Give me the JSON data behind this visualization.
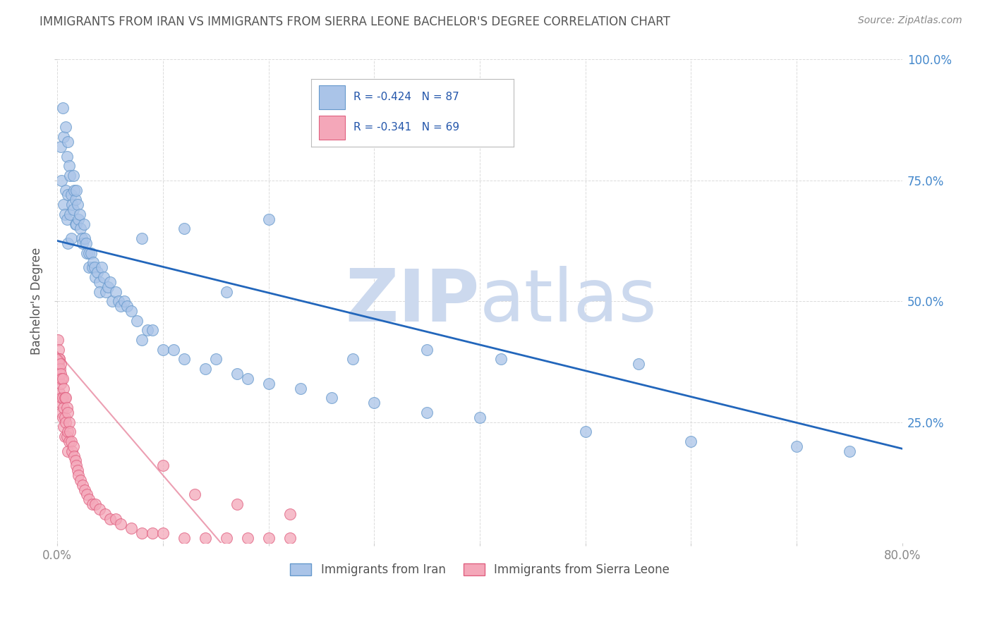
{
  "title": "IMMIGRANTS FROM IRAN VS IMMIGRANTS FROM SIERRA LEONE BACHELOR'S DEGREE CORRELATION CHART",
  "source": "Source: ZipAtlas.com",
  "ylabel": "Bachelor's Degree",
  "xlim": [
    0.0,
    0.8
  ],
  "ylim": [
    0.0,
    1.0
  ],
  "iran_color": "#aac4e8",
  "iran_edge": "#6699cc",
  "sierra_color": "#f4a7b9",
  "sierra_edge": "#e06080",
  "iran_line_color": "#2266bb",
  "sierra_line_color": "#e06080",
  "iran_line_x": [
    0.0,
    0.8
  ],
  "iran_line_y": [
    0.625,
    0.195
  ],
  "sierra_line_x": [
    0.0,
    0.155
  ],
  "sierra_line_y": [
    0.395,
    0.0
  ],
  "iran_R": "-0.424",
  "iran_N": 87,
  "sierra_R": "-0.341",
  "sierra_N": 69,
  "watermark_zip": "ZIP",
  "watermark_atlas": "atlas",
  "watermark_color": "#ccd9ee",
  "legend_iran": "Immigrants from Iran",
  "legend_sierra": "Immigrants from Sierra Leone",
  "iran_scatter_x": [
    0.003,
    0.004,
    0.005,
    0.006,
    0.006,
    0.007,
    0.008,
    0.008,
    0.009,
    0.009,
    0.01,
    0.01,
    0.01,
    0.011,
    0.012,
    0.012,
    0.013,
    0.013,
    0.014,
    0.015,
    0.015,
    0.016,
    0.017,
    0.017,
    0.018,
    0.018,
    0.019,
    0.02,
    0.021,
    0.022,
    0.023,
    0.024,
    0.025,
    0.026,
    0.027,
    0.028,
    0.03,
    0.03,
    0.032,
    0.033,
    0.034,
    0.035,
    0.036,
    0.038,
    0.04,
    0.04,
    0.042,
    0.044,
    0.046,
    0.048,
    0.05,
    0.052,
    0.055,
    0.058,
    0.06,
    0.063,
    0.066,
    0.07,
    0.075,
    0.08,
    0.085,
    0.09,
    0.1,
    0.11,
    0.12,
    0.14,
    0.15,
    0.17,
    0.18,
    0.2,
    0.23,
    0.26,
    0.3,
    0.35,
    0.4,
    0.5,
    0.6,
    0.7,
    0.75,
    0.08,
    0.12,
    0.16,
    0.2,
    0.28,
    0.35,
    0.42,
    0.55
  ],
  "iran_scatter_y": [
    0.82,
    0.75,
    0.9,
    0.7,
    0.84,
    0.68,
    0.86,
    0.73,
    0.8,
    0.67,
    0.83,
    0.72,
    0.62,
    0.78,
    0.76,
    0.68,
    0.72,
    0.63,
    0.7,
    0.76,
    0.69,
    0.73,
    0.66,
    0.71,
    0.73,
    0.66,
    0.7,
    0.67,
    0.68,
    0.65,
    0.63,
    0.62,
    0.66,
    0.63,
    0.62,
    0.6,
    0.6,
    0.57,
    0.6,
    0.57,
    0.58,
    0.57,
    0.55,
    0.56,
    0.54,
    0.52,
    0.57,
    0.55,
    0.52,
    0.53,
    0.54,
    0.5,
    0.52,
    0.5,
    0.49,
    0.5,
    0.49,
    0.48,
    0.46,
    0.42,
    0.44,
    0.44,
    0.4,
    0.4,
    0.38,
    0.36,
    0.38,
    0.35,
    0.34,
    0.33,
    0.32,
    0.3,
    0.29,
    0.27,
    0.26,
    0.23,
    0.21,
    0.2,
    0.19,
    0.63,
    0.65,
    0.52,
    0.67,
    0.38,
    0.4,
    0.38,
    0.37
  ],
  "sierra_scatter_x": [
    0.0005,
    0.001,
    0.001,
    0.001,
    0.0015,
    0.002,
    0.002,
    0.002,
    0.0025,
    0.003,
    0.003,
    0.003,
    0.0035,
    0.004,
    0.004,
    0.004,
    0.005,
    0.005,
    0.005,
    0.006,
    0.006,
    0.006,
    0.007,
    0.007,
    0.007,
    0.008,
    0.008,
    0.009,
    0.009,
    0.01,
    0.01,
    0.01,
    0.011,
    0.011,
    0.012,
    0.013,
    0.014,
    0.015,
    0.016,
    0.017,
    0.018,
    0.019,
    0.02,
    0.022,
    0.024,
    0.026,
    0.028,
    0.03,
    0.033,
    0.036,
    0.04,
    0.045,
    0.05,
    0.055,
    0.06,
    0.07,
    0.08,
    0.09,
    0.1,
    0.12,
    0.14,
    0.16,
    0.18,
    0.2,
    0.22,
    0.1,
    0.13,
    0.17,
    0.22
  ],
  "sierra_scatter_y": [
    0.42,
    0.4,
    0.37,
    0.34,
    0.38,
    0.38,
    0.35,
    0.31,
    0.36,
    0.37,
    0.33,
    0.29,
    0.35,
    0.34,
    0.3,
    0.27,
    0.34,
    0.3,
    0.26,
    0.32,
    0.28,
    0.24,
    0.3,
    0.26,
    0.22,
    0.3,
    0.25,
    0.28,
    0.22,
    0.27,
    0.23,
    0.19,
    0.25,
    0.21,
    0.23,
    0.21,
    0.19,
    0.2,
    0.18,
    0.17,
    0.16,
    0.15,
    0.14,
    0.13,
    0.12,
    0.11,
    0.1,
    0.09,
    0.08,
    0.08,
    0.07,
    0.06,
    0.05,
    0.05,
    0.04,
    0.03,
    0.02,
    0.02,
    0.02,
    0.01,
    0.01,
    0.01,
    0.01,
    0.01,
    0.01,
    0.16,
    0.1,
    0.08,
    0.06
  ],
  "grid_color": "#cccccc",
  "background_color": "#ffffff",
  "title_color": "#555555",
  "axis_label_color": "#555555",
  "tick_label_color_x": "#888888",
  "tick_label_color_y": "#4488cc",
  "legend_text_color": "#2255aa",
  "legend_box_color": "#4488cc"
}
